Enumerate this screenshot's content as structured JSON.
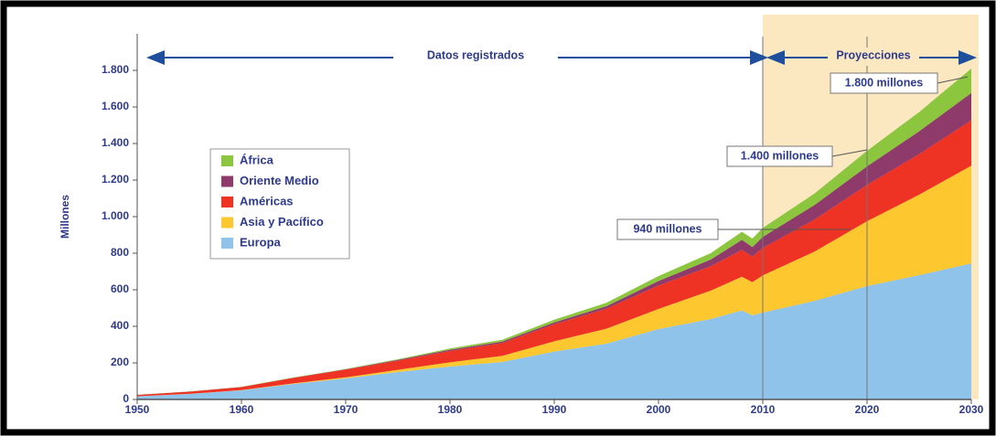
{
  "chart_data": {
    "type": "stacked-area",
    "y_label": "Millones",
    "x": [
      1950,
      1955,
      1960,
      1965,
      1970,
      1975,
      1980,
      1985,
      1990,
      1995,
      2000,
      2005,
      2008,
      2009,
      2010,
      2015,
      2020,
      2025,
      2030
    ],
    "series": [
      {
        "name": "Europa",
        "color": "#8fc3ea",
        "values": [
          17,
          30,
          50,
          85,
          115,
          150,
          180,
          205,
          262,
          305,
          385,
          440,
          487,
          460,
          475,
          540,
          620,
          680,
          744
        ]
      },
      {
        "name": "Asia y Pacífico",
        "color": "#fdc72f",
        "values": [
          0.2,
          0.5,
          1,
          3,
          6,
          12,
          23,
          33,
          56,
          82,
          110,
          155,
          184,
          181,
          204,
          270,
          355,
          440,
          535
        ]
      },
      {
        "name": "Américas",
        "color": "#ee3224",
        "values": [
          7.5,
          12,
          16.7,
          30,
          42,
          50,
          62,
          70,
          93,
          109,
          128,
          133,
          147,
          140,
          150,
          175,
          199,
          222,
          248
        ]
      },
      {
        "name": "Oriente Medio",
        "color": "#8e3a6b",
        "values": [
          0.2,
          0.4,
          0.6,
          1,
          2,
          4,
          7,
          8,
          10,
          14,
          25,
          37,
          55,
          53,
          60,
          80,
          101,
          125,
          149
        ]
      },
      {
        "name": "África",
        "color": "#8cc63f",
        "values": [
          0.5,
          0.6,
          0.8,
          1.5,
          2,
          4,
          7,
          10,
          15,
          19,
          27,
          35,
          44,
          46,
          49,
          63,
          85,
          105,
          134
        ]
      }
    ],
    "xlim": [
      1950,
      2030
    ],
    "xticks": [
      1950,
      1960,
      1970,
      1980,
      1990,
      2000,
      2010,
      2020,
      2030
    ],
    "ylim": [
      0,
      2000
    ],
    "yticks": [
      0,
      200,
      400,
      600,
      800,
      {
        "value": 1000,
        "label": "1.000"
      },
      {
        "value": 1200,
        "label": "1.200"
      },
      {
        "value": 1400,
        "label": "1.400"
      },
      {
        "value": 1600,
        "label": "1.600"
      },
      {
        "value": 1800,
        "label": "1.800"
      }
    ],
    "projection_range": [
      2010,
      2030
    ],
    "projection_color": "#fbe8c0",
    "vlines": [
      2010,
      2020
    ],
    "periods": [
      "Datos registrados",
      "Proyecciones"
    ],
    "annotations": [
      "940 millones",
      "1.400 millones",
      "1.800 millones"
    ]
  }
}
